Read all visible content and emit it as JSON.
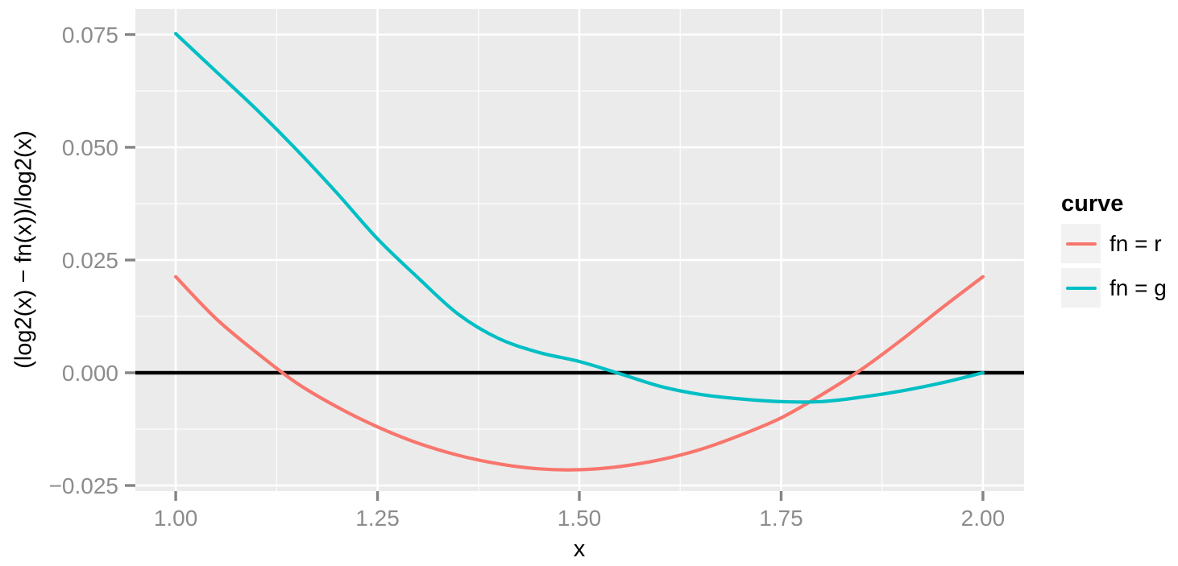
{
  "figure": {
    "background": "#FFFFFF"
  },
  "colors": {
    "panel_fill": "#EBEBEB",
    "grid_major": "#FFFFFF",
    "grid_minor": "#FFFFFF",
    "tick_mark": "#858585",
    "tick_label": "#8C8C8C",
    "axis_title": "#000000",
    "zero_line": "#000000",
    "legend_key_fill": "#F2F2F2",
    "series_r": "#F8766D",
    "series_g": "#00BFC4"
  },
  "chart_data": {
    "type": "line",
    "title": "",
    "xlabel": "x",
    "ylabel": "(log2(x) − fn(x))/log2(x)",
    "xlim": [
      0.95,
      2.051
    ],
    "ylim": [
      -0.02625,
      0.0807
    ],
    "grid": true,
    "x_ticks": [
      1.0,
      1.25,
      1.5,
      1.75,
      2.0
    ],
    "x_tick_labels": [
      "1.00",
      "1.25",
      "1.50",
      "1.75",
      "2.00"
    ],
    "y_ticks": [
      0.075,
      0.05,
      0.025,
      0.0,
      -0.025
    ],
    "y_tick_labels": [
      "0.075",
      "0.050",
      "0.025",
      "0.000",
      "−0.025"
    ],
    "x_minor_ticks": [
      1.125,
      1.375,
      1.625,
      1.875
    ],
    "y_minor_ticks": [
      0.0625,
      0.0375,
      0.0125,
      -0.0125
    ],
    "hline": {
      "y": 0.0,
      "color": "#000000"
    },
    "legend": {
      "title": "curve",
      "position": "right",
      "entries": [
        {
          "label": "fn = r",
          "color": "#F8766D"
        },
        {
          "label": "fn = g",
          "color": "#00BFC4"
        }
      ]
    },
    "x": [
      1.0,
      1.05,
      1.1,
      1.15,
      1.2,
      1.25,
      1.3,
      1.35,
      1.4,
      1.45,
      1.5,
      1.55,
      1.6,
      1.65,
      1.7,
      1.75,
      1.8,
      1.85,
      1.9,
      1.95,
      2.0
    ],
    "series": [
      {
        "name": "fn = r",
        "color": "#F8766D",
        "values": [
          0.0213,
          0.012,
          0.0045,
          -0.0023,
          -0.0076,
          -0.012,
          -0.0156,
          -0.0183,
          -0.0202,
          -0.0213,
          -0.0215,
          -0.0208,
          -0.0193,
          -0.017,
          -0.0138,
          -0.01,
          -0.0049,
          0.0008,
          0.0074,
          0.0145,
          0.0213
        ]
      },
      {
        "name": "fn = g",
        "color": "#00BFC4",
        "values": [
          0.0752,
          0.0668,
          0.0584,
          0.0494,
          0.0398,
          0.0297,
          0.0211,
          0.013,
          0.0076,
          0.0045,
          0.0025,
          -0.0002,
          -0.003,
          -0.0048,
          -0.0058,
          -0.0064,
          -0.0064,
          -0.0054,
          -0.004,
          -0.0022,
          0.0
        ]
      }
    ]
  }
}
